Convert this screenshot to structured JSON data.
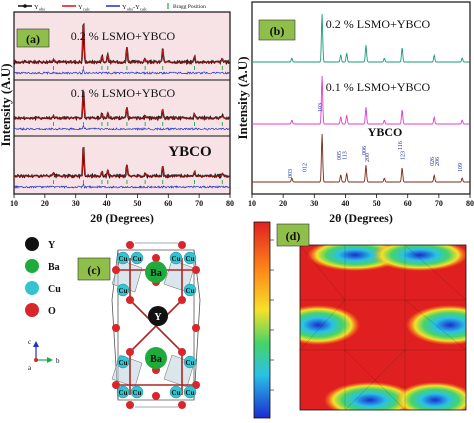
{
  "panels": {
    "a": {
      "label": "(a)",
      "legend": {
        "obs": "Y",
        "obs_sub": "obs",
        "calc": "Y",
        "calc_sub": "calc",
        "diff": "Y",
        "diff_sub": "obs",
        "diff_mid": "-Y",
        "diff_sub2": "calc",
        "bragg": "Bragg Position"
      },
      "samples": [
        "0.2 % LSMO+YBCO",
        "0.1 % LSMO+YBCO",
        "YBCO"
      ],
      "ylabel": "Intensity (A.U)",
      "xlabel": "2θ (Degrees)",
      "xticks": [
        "10",
        "20",
        "30",
        "40",
        "50",
        "60",
        "70",
        "80"
      ]
    },
    "b": {
      "label": "(b)",
      "samples": [
        "0.2 % LSMO+YBCO",
        "0.1 % LSMO+YBCO",
        "YBCO"
      ],
      "ylabel": "Intensity (A.U)",
      "xlabel": "2θ (Degrees)",
      "xticks": [
        "10",
        "20",
        "30",
        "40",
        "50",
        "60",
        "70",
        "80"
      ],
      "hkl": [
        "003",
        "012",
        "103",
        "005",
        "113",
        "006",
        "200",
        "116",
        "123",
        "026",
        "206",
        "109"
      ]
    },
    "c": {
      "label": "(c)",
      "legend": [
        {
          "symbol": "Y",
          "color": "#111111"
        },
        {
          "symbol": "Ba",
          "color": "#1faa3c"
        },
        {
          "symbol": "Cu",
          "color": "#33c3d1"
        },
        {
          "symbol": "O",
          "color": "#d8262a"
        }
      ],
      "atom_labels": {
        "ba": "Ba",
        "cu": "Cu",
        "y": "Y"
      },
      "axes": {
        "c": "c",
        "a": "a",
        "b": "b"
      }
    },
    "d": {
      "label": "(d)"
    }
  },
  "colors": {
    "panel_a_bg": "#f7e3e6",
    "panel_label_bg": "#8fbf4a",
    "obs": "#111111",
    "calc": "#d01818",
    "diff": "#2030c8",
    "bragg": "#1aa84a",
    "pattern_top": "#1a9a7a",
    "pattern_mid": "#e03ccf",
    "pattern_bot": "#7a2a16"
  }
}
